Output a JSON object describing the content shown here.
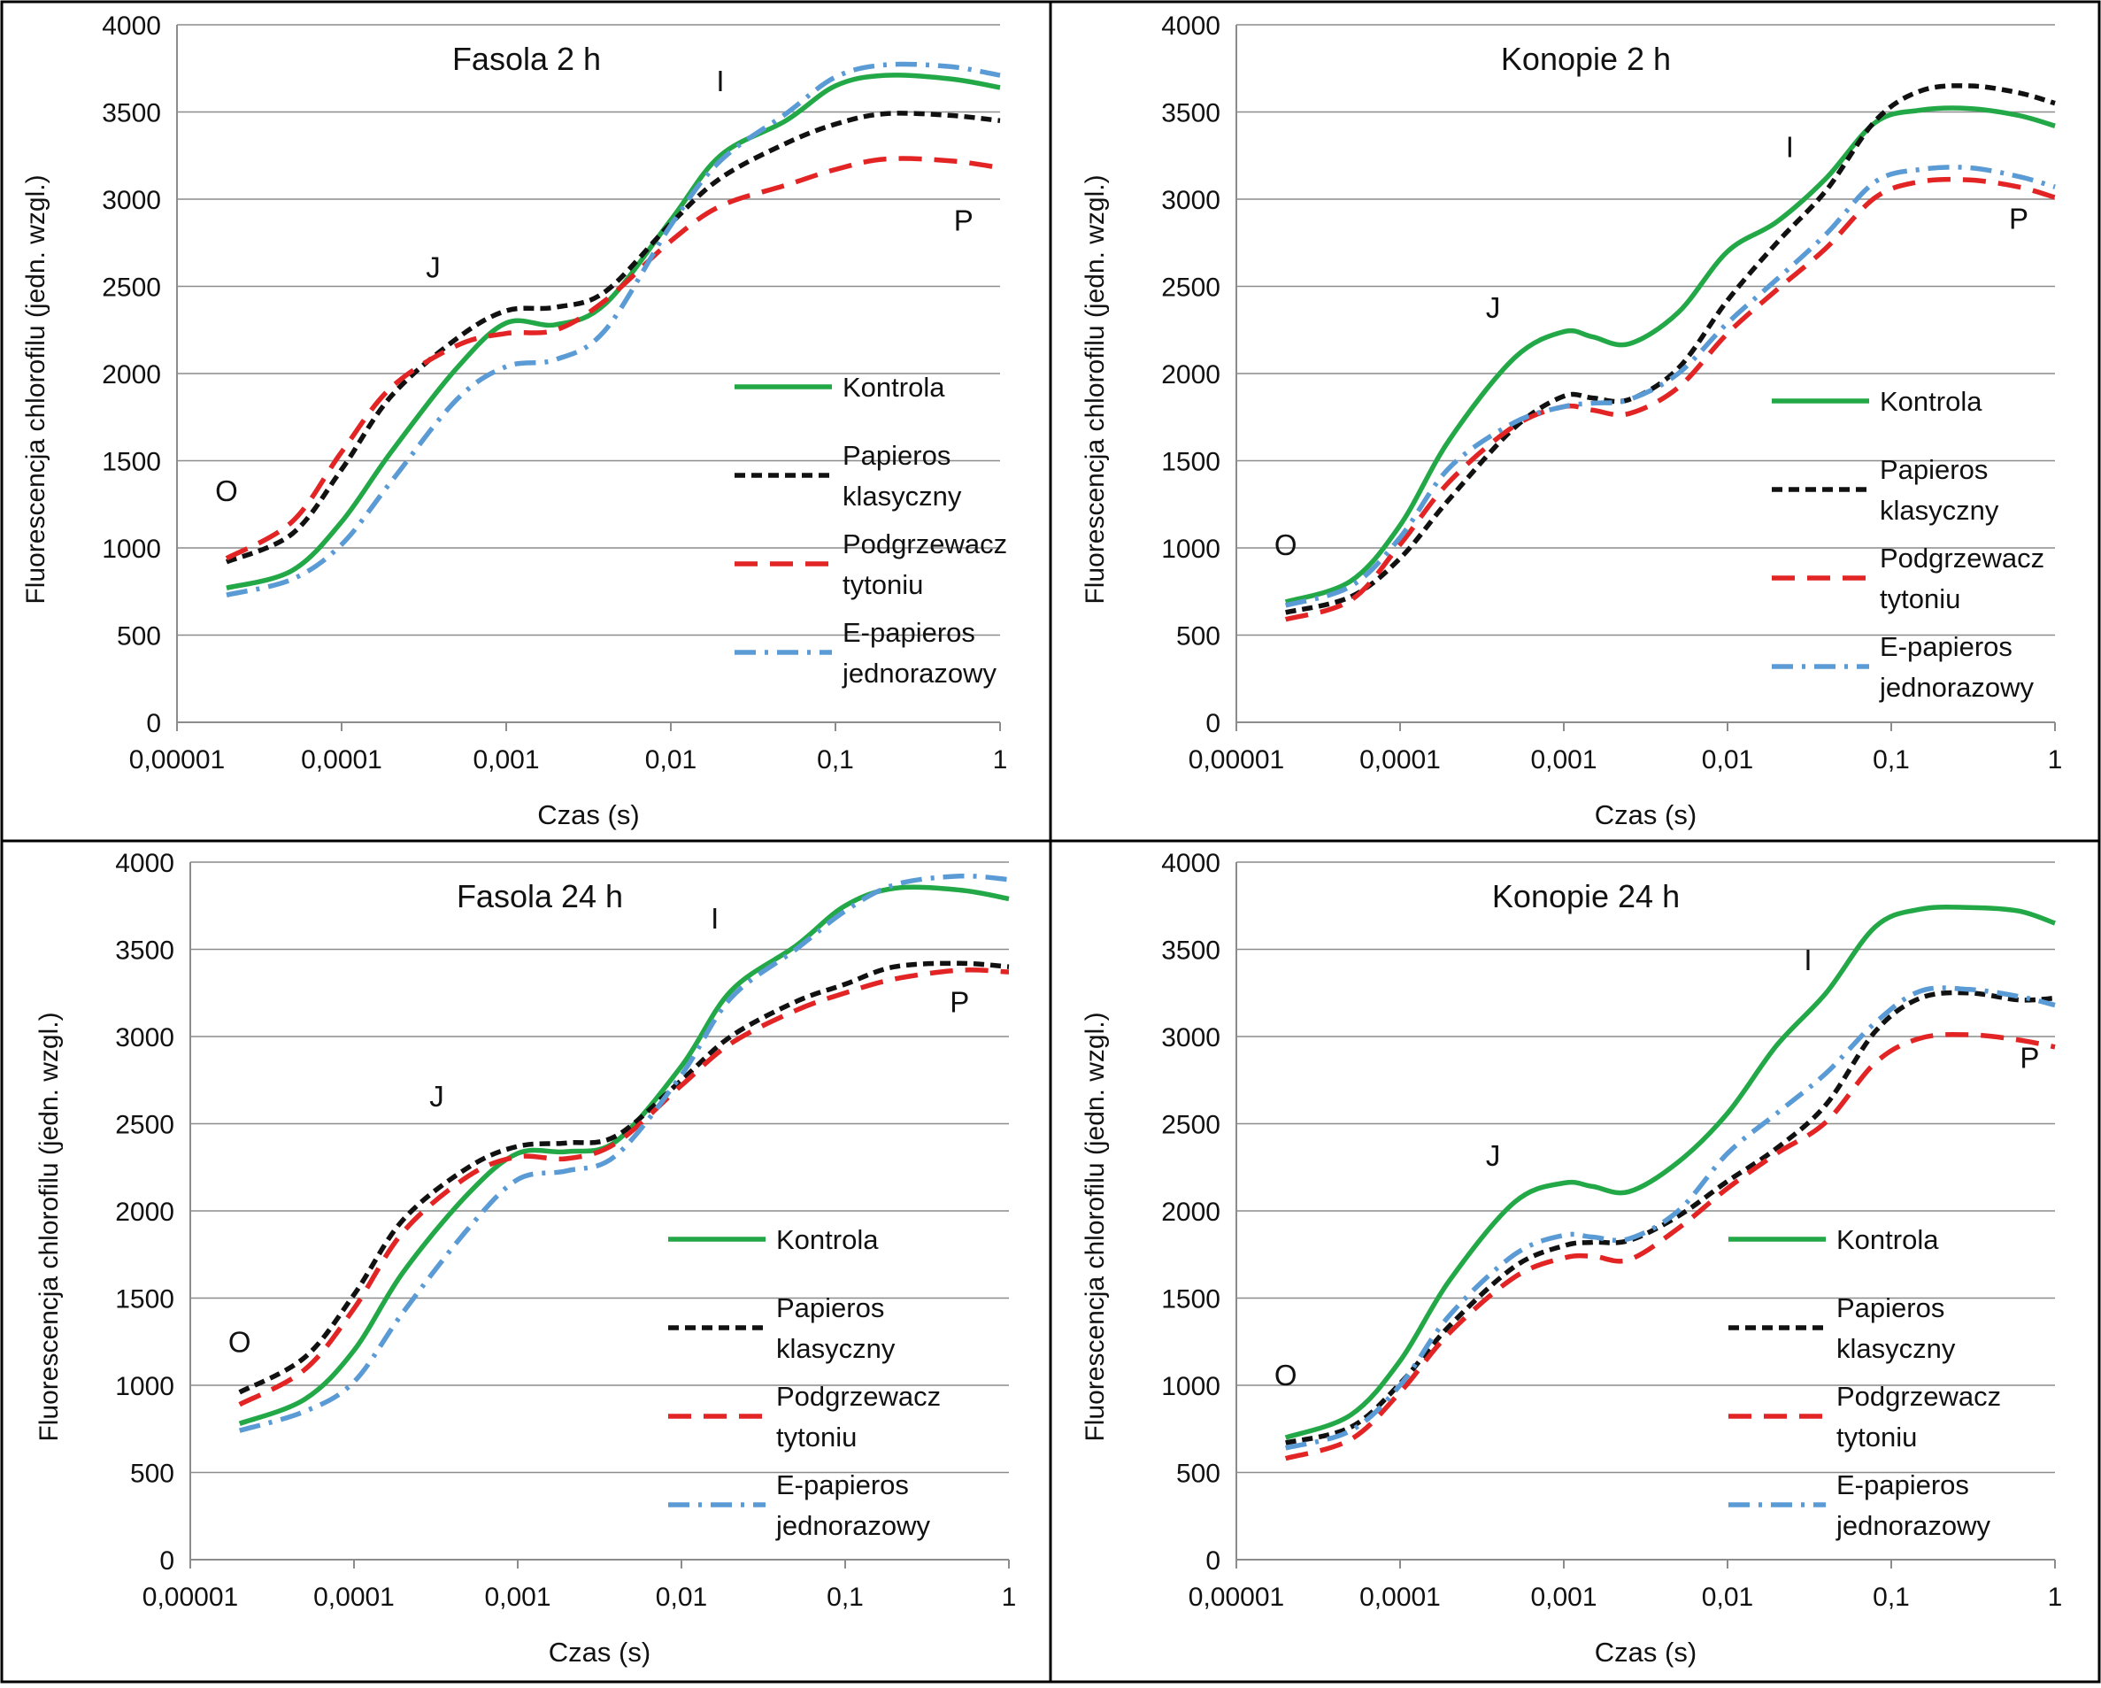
{
  "chart_data": [
    {
      "type": "line",
      "title": "Fasola 2 h",
      "xlabel": "Czas (s)",
      "ylabel": "Fluorescencja chlorofilu (jedn. wzgl.)",
      "x_scale": "log",
      "xlim": [
        1e-05,
        1
      ],
      "ylim": [
        0,
        4000
      ],
      "x_ticks": [
        "0,00001",
        "0,0001",
        "0,001",
        "0,01",
        "0,1",
        "1"
      ],
      "y_ticks": [
        "0",
        "500",
        "1000",
        "1500",
        "2000",
        "2500",
        "3000",
        "3500",
        "4000"
      ],
      "grid": "horizontal",
      "legend_position": "right",
      "annotations": [
        {
          "text": "O",
          "x": 2e-05,
          "y": 1270
        },
        {
          "text": "J",
          "x": 0.00036,
          "y": 2550
        },
        {
          "text": "I",
          "x": 0.02,
          "y": 3620
        },
        {
          "text": "P",
          "x": 0.6,
          "y": 2820
        }
      ],
      "series": [
        {
          "name": "Kontrola",
          "color": "#22a846",
          "dash": "solid",
          "x": [
            2e-05,
            5e-05,
            0.0001,
            0.0002,
            0.0005,
            0.001,
            0.002,
            0.004,
            0.01,
            0.02,
            0.05,
            0.1,
            0.2,
            0.5,
            1
          ],
          "y": [
            770,
            870,
            1150,
            1550,
            2030,
            2290,
            2280,
            2400,
            2880,
            3250,
            3450,
            3650,
            3710,
            3690,
            3640
          ]
        },
        {
          "name": "Papieros klasyczny",
          "color": "#111111",
          "dash": "dash",
          "x": [
            2e-05,
            5e-05,
            0.0001,
            0.0002,
            0.0005,
            0.001,
            0.002,
            0.004,
            0.01,
            0.02,
            0.05,
            0.1,
            0.2,
            0.5,
            1
          ],
          "y": [
            920,
            1080,
            1450,
            1870,
            2200,
            2360,
            2380,
            2470,
            2860,
            3120,
            3320,
            3430,
            3490,
            3480,
            3450
          ]
        },
        {
          "name": "Podgrzewacz tytoniu",
          "color": "#e22424",
          "dash": "longdash",
          "x": [
            2e-05,
            5e-05,
            0.0001,
            0.0002,
            0.0005,
            0.001,
            0.002,
            0.004,
            0.01,
            0.02,
            0.05,
            0.1,
            0.2,
            0.5,
            1
          ],
          "y": [
            940,
            1150,
            1550,
            1920,
            2160,
            2230,
            2250,
            2420,
            2760,
            2960,
            3080,
            3170,
            3230,
            3220,
            3180
          ]
        },
        {
          "name": "E-papieros jednorazowy",
          "color": "#5b9bd5",
          "dash": "dashdot",
          "x": [
            2e-05,
            5e-05,
            0.0001,
            0.0002,
            0.0005,
            0.001,
            0.002,
            0.004,
            0.01,
            0.02,
            0.05,
            0.1,
            0.2,
            0.5,
            1
          ],
          "y": [
            730,
            820,
            1020,
            1380,
            1850,
            2040,
            2080,
            2250,
            2850,
            3220,
            3490,
            3700,
            3770,
            3760,
            3710
          ]
        }
      ]
    },
    {
      "type": "line",
      "title": "Konopie 2 h",
      "xlabel": "Czas (s)",
      "ylabel": "Fluorescencja chlorofilu (jedn. wzgl.)",
      "x_scale": "log",
      "xlim": [
        1e-05,
        1
      ],
      "ylim": [
        0,
        4000
      ],
      "x_ticks": [
        "0,00001",
        "0,0001",
        "0,001",
        "0,01",
        "0,1",
        "1"
      ],
      "y_ticks": [
        "0",
        "500",
        "1000",
        "1500",
        "2000",
        "2500",
        "3000",
        "3500",
        "4000"
      ],
      "grid": "horizontal",
      "legend_position": "right",
      "annotations": [
        {
          "text": "O",
          "x": 2e-05,
          "y": 960
        },
        {
          "text": "J",
          "x": 0.00037,
          "y": 2320
        },
        {
          "text": "I",
          "x": 0.024,
          "y": 3240
        },
        {
          "text": "P",
          "x": 0.6,
          "y": 2830
        }
      ],
      "series": [
        {
          "name": "Kontrola",
          "color": "#22a846",
          "dash": "solid",
          "x": [
            2e-05,
            5e-05,
            0.0001,
            0.0002,
            0.0005,
            0.001,
            0.0015,
            0.0025,
            0.005,
            0.01,
            0.02,
            0.04,
            0.08,
            0.15,
            0.3,
            0.6,
            1
          ],
          "y": [
            690,
            810,
            1130,
            1620,
            2090,
            2240,
            2210,
            2170,
            2350,
            2700,
            2870,
            3120,
            3440,
            3510,
            3520,
            3480,
            3420
          ]
        },
        {
          "name": "Papieros klasyczny",
          "color": "#111111",
          "dash": "dash",
          "x": [
            2e-05,
            5e-05,
            0.0001,
            0.0002,
            0.0005,
            0.001,
            0.0015,
            0.0025,
            0.005,
            0.01,
            0.02,
            0.04,
            0.08,
            0.15,
            0.3,
            0.6,
            1
          ],
          "y": [
            630,
            720,
            940,
            1280,
            1690,
            1870,
            1860,
            1850,
            2030,
            2420,
            2750,
            3050,
            3450,
            3620,
            3650,
            3610,
            3550
          ]
        },
        {
          "name": "Podgrzewacz tytoniu",
          "color": "#e22424",
          "dash": "longdash",
          "x": [
            2e-05,
            5e-05,
            0.0001,
            0.0002,
            0.0005,
            0.001,
            0.0015,
            0.0025,
            0.005,
            0.01,
            0.02,
            0.04,
            0.08,
            0.15,
            0.3,
            0.6,
            1
          ],
          "y": [
            590,
            700,
            1020,
            1380,
            1700,
            1810,
            1790,
            1770,
            1920,
            2230,
            2480,
            2720,
            3010,
            3100,
            3110,
            3070,
            3010
          ]
        },
        {
          "name": "E-papieros jednorazowy",
          "color": "#5b9bd5",
          "dash": "dashdot",
          "x": [
            2e-05,
            5e-05,
            0.0001,
            0.0002,
            0.0005,
            0.001,
            0.0015,
            0.0025,
            0.005,
            0.01,
            0.02,
            0.04,
            0.08,
            0.15,
            0.3,
            0.6,
            1
          ],
          "y": [
            670,
            780,
            1060,
            1460,
            1720,
            1810,
            1830,
            1850,
            2000,
            2290,
            2540,
            2800,
            3100,
            3170,
            3180,
            3130,
            3070
          ]
        }
      ]
    },
    {
      "type": "line",
      "title": "Fasola 24 h",
      "xlabel": "Czas (s)",
      "ylabel": "Fluorescencja chlorofilu (jedn. wzgl.)",
      "x_scale": "log",
      "xlim": [
        1e-05,
        1
      ],
      "ylim": [
        0,
        4000
      ],
      "x_ticks": [
        "0,00001",
        "0,0001",
        "0,001",
        "0,01",
        "0,1",
        "1"
      ],
      "y_ticks": [
        "0",
        "500",
        "1000",
        "1500",
        "2000",
        "2500",
        "3000",
        "3500",
        "4000"
      ],
      "grid": "horizontal",
      "legend_position": "right",
      "annotations": [
        {
          "text": "O",
          "x": 2e-05,
          "y": 1190
        },
        {
          "text": "J",
          "x": 0.00032,
          "y": 2600
        },
        {
          "text": "I",
          "x": 0.016,
          "y": 3620
        },
        {
          "text": "P",
          "x": 0.5,
          "y": 3140
        }
      ],
      "series": [
        {
          "name": "Kontrola",
          "color": "#22a846",
          "dash": "solid",
          "x": [
            2e-05,
            5e-05,
            0.0001,
            0.0002,
            0.0005,
            0.001,
            0.002,
            0.004,
            0.01,
            0.02,
            0.05,
            0.1,
            0.2,
            0.5,
            1
          ],
          "y": [
            780,
            920,
            1200,
            1650,
            2100,
            2330,
            2340,
            2400,
            2830,
            3260,
            3520,
            3750,
            3850,
            3840,
            3790
          ]
        },
        {
          "name": "Papieros klasyczny",
          "color": "#111111",
          "dash": "dash",
          "x": [
            2e-05,
            5e-05,
            0.0001,
            0.0002,
            0.0005,
            0.001,
            0.002,
            0.004,
            0.01,
            0.02,
            0.05,
            0.1,
            0.2,
            0.5,
            1
          ],
          "y": [
            960,
            1160,
            1520,
            1950,
            2250,
            2370,
            2390,
            2430,
            2750,
            3000,
            3200,
            3300,
            3400,
            3420,
            3400
          ]
        },
        {
          "name": "Podgrzewacz tytoniu",
          "color": "#e22424",
          "dash": "longdash",
          "x": [
            2e-05,
            5e-05,
            0.0001,
            0.0002,
            0.0005,
            0.001,
            0.002,
            0.004,
            0.01,
            0.02,
            0.05,
            0.1,
            0.2,
            0.5,
            1
          ],
          "y": [
            890,
            1090,
            1440,
            1880,
            2200,
            2310,
            2300,
            2390,
            2720,
            2960,
            3150,
            3250,
            3330,
            3380,
            3370
          ]
        },
        {
          "name": "E-papieros jednorazowy",
          "color": "#5b9bd5",
          "dash": "dashdot",
          "x": [
            2e-05,
            5e-05,
            0.0001,
            0.0002,
            0.0005,
            0.001,
            0.002,
            0.004,
            0.01,
            0.02,
            0.05,
            0.1,
            0.2,
            0.5,
            1
          ],
          "y": [
            740,
            850,
            1020,
            1420,
            1900,
            2180,
            2230,
            2320,
            2780,
            3220,
            3500,
            3720,
            3870,
            3920,
            3900
          ]
        }
      ]
    },
    {
      "type": "line",
      "title": "Konopie 24 h",
      "xlabel": "Czas (s)",
      "ylabel": "Fluorescencja chlorofilu (jedn. wzgl.)",
      "x_scale": "log",
      "xlim": [
        1e-05,
        1
      ],
      "ylim": [
        0,
        4000
      ],
      "x_ticks": [
        "0,00001",
        "0,0001",
        "0,001",
        "0,01",
        "0,1",
        "1"
      ],
      "y_ticks": [
        "0",
        "500",
        "1000",
        "1500",
        "2000",
        "2500",
        "3000",
        "3500",
        "4000"
      ],
      "grid": "horizontal",
      "legend_position": "right",
      "annotations": [
        {
          "text": "O",
          "x": 2e-05,
          "y": 1000
        },
        {
          "text": "J",
          "x": 0.00037,
          "y": 2260
        },
        {
          "text": "I",
          "x": 0.031,
          "y": 3380
        },
        {
          "text": "P",
          "x": 0.7,
          "y": 2820
        }
      ],
      "series": [
        {
          "name": "Kontrola",
          "color": "#22a846",
          "dash": "solid",
          "x": [
            2e-05,
            5e-05,
            0.0001,
            0.0002,
            0.0005,
            0.001,
            0.0015,
            0.0025,
            0.005,
            0.01,
            0.02,
            0.04,
            0.08,
            0.15,
            0.3,
            0.6,
            1
          ],
          "y": [
            700,
            830,
            1140,
            1600,
            2050,
            2160,
            2140,
            2110,
            2280,
            2560,
            2950,
            3250,
            3630,
            3730,
            3740,
            3720,
            3650
          ]
        },
        {
          "name": "Papieros klasyczny",
          "color": "#111111",
          "dash": "dash",
          "x": [
            2e-05,
            5e-05,
            0.0001,
            0.0002,
            0.0005,
            0.001,
            0.0015,
            0.0025,
            0.005,
            0.01,
            0.02,
            0.04,
            0.08,
            0.15,
            0.3,
            0.6,
            1
          ],
          "y": [
            670,
            760,
            1010,
            1340,
            1680,
            1800,
            1820,
            1830,
            1970,
            2170,
            2360,
            2610,
            3030,
            3220,
            3250,
            3210,
            3220
          ]
        },
        {
          "name": "Podgrzewacz tytoniu",
          "color": "#e22424",
          "dash": "longdash",
          "x": [
            2e-05,
            5e-05,
            0.0001,
            0.0002,
            0.0005,
            0.001,
            0.0015,
            0.0025,
            0.005,
            0.01,
            0.02,
            0.04,
            0.08,
            0.15,
            0.3,
            0.6,
            1
          ],
          "y": [
            580,
            690,
            960,
            1300,
            1620,
            1730,
            1740,
            1720,
            1900,
            2130,
            2330,
            2510,
            2850,
            2990,
            3010,
            2980,
            2940
          ]
        },
        {
          "name": "E-papieros jednorazowy",
          "color": "#5b9bd5",
          "dash": "dashdot",
          "x": [
            2e-05,
            5e-05,
            0.0001,
            0.0002,
            0.0005,
            0.001,
            0.0015,
            0.0025,
            0.005,
            0.01,
            0.02,
            0.04,
            0.08,
            0.15,
            0.3,
            0.6,
            1
          ],
          "y": [
            640,
            740,
            1000,
            1400,
            1750,
            1860,
            1850,
            1840,
            2000,
            2330,
            2560,
            2790,
            3080,
            3260,
            3270,
            3230,
            3180
          ]
        }
      ]
    }
  ]
}
